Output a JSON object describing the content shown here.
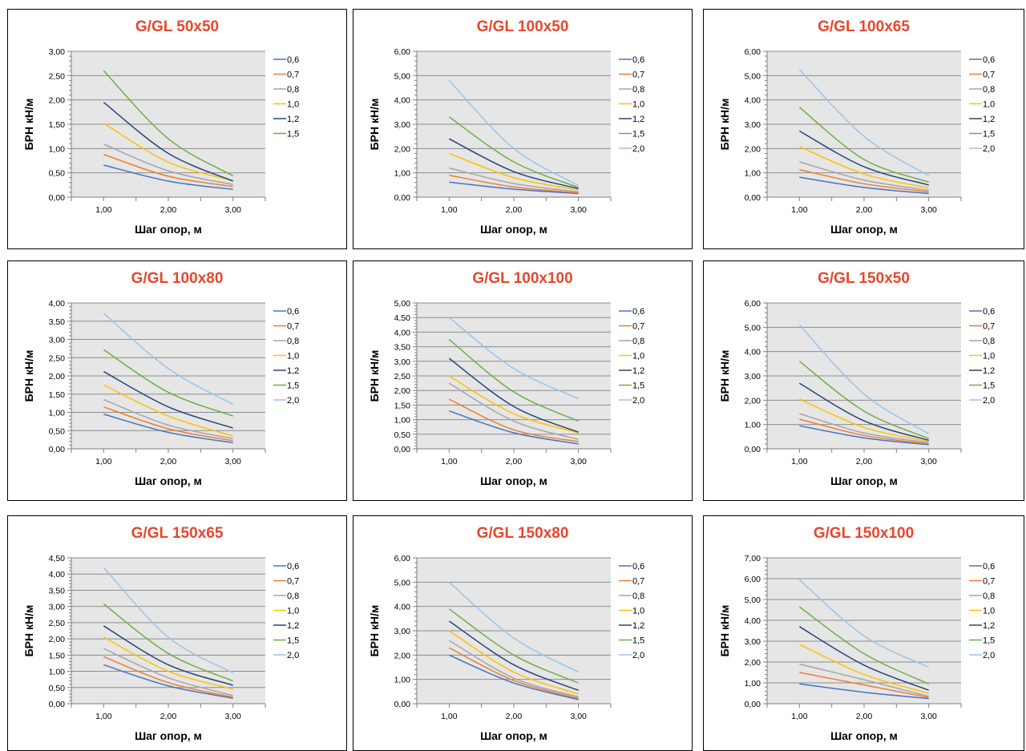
{
  "series_names": [
    "0,6",
    "0,7",
    "0,8",
    "1,0",
    "1,2",
    "1,5",
    "2,0"
  ],
  "series_colors": [
    "#4472c4",
    "#ed7d31",
    "#a5a5a5",
    "#ffc000",
    "#264478",
    "#70ad47",
    "#9dc3e6"
  ],
  "chart_data": [
    {
      "type": "line",
      "title": "G/GL 50x50",
      "xlabel": "Шаг опор, м",
      "ylabel": "БРН кН/м",
      "x": [
        1,
        2,
        3
      ],
      "x_ticks": [
        "1,00",
        "2,00",
        "3,00"
      ],
      "xlim": [
        0.5,
        3.5
      ],
      "ylim": [
        0,
        3.0
      ],
      "y_ticks": [
        "0,00",
        "0,50",
        "1,00",
        "1,50",
        "2,00",
        "2,50",
        "3,00"
      ],
      "minor_ticks": 5,
      "legend": "right",
      "grid": true,
      "series": [
        {
          "name": "0,6",
          "values": [
            0.66,
            0.33,
            0.16
          ]
        },
        {
          "name": "0,7",
          "values": [
            0.88,
            0.43,
            0.22
          ]
        },
        {
          "name": "0,8",
          "values": [
            1.09,
            0.54,
            0.26
          ]
        },
        {
          "name": "1,0",
          "values": [
            1.52,
            0.72,
            0.34
          ]
        },
        {
          "name": "1,2",
          "values": [
            1.95,
            0.9,
            0.33
          ]
        },
        {
          "name": "1,5",
          "values": [
            2.6,
            1.2,
            0.44
          ]
        }
      ]
    },
    {
      "type": "line",
      "title": "G/GL 100x50",
      "xlabel": "Шаг опор, м",
      "ylabel": "БРН кН/м",
      "x": [
        1,
        2,
        3
      ],
      "x_ticks": [
        "1,00",
        "2,00",
        "3,00"
      ],
      "xlim": [
        0.5,
        3.5
      ],
      "ylim": [
        0,
        6.0
      ],
      "y_ticks": [
        "0,00",
        "1,00",
        "2,00",
        "3,00",
        "4,00",
        "5,00",
        "6,00"
      ],
      "minor_ticks": 5,
      "legend": "right",
      "grid": true,
      "series": [
        {
          "name": "0,6",
          "values": [
            0.62,
            0.33,
            0.15
          ]
        },
        {
          "name": "0,7",
          "values": [
            0.9,
            0.42,
            0.18
          ]
        },
        {
          "name": "0,8",
          "values": [
            1.2,
            0.56,
            0.22
          ]
        },
        {
          "name": "1,0",
          "values": [
            1.8,
            0.8,
            0.3
          ]
        },
        {
          "name": "1,2",
          "values": [
            2.4,
            1.05,
            0.35
          ]
        },
        {
          "name": "1,5",
          "values": [
            3.3,
            1.45,
            0.4
          ]
        },
        {
          "name": "2,0",
          "values": [
            4.8,
            2.0,
            0.48
          ]
        }
      ]
    },
    {
      "type": "line",
      "title": "G/GL 100x65",
      "xlabel": "Шаг опор, м",
      "ylabel": "БРН кН/м",
      "x": [
        1,
        2,
        3
      ],
      "x_ticks": [
        "1,00",
        "2,00",
        "3,00"
      ],
      "xlim": [
        0.5,
        3.5
      ],
      "ylim": [
        0,
        6.0
      ],
      "y_ticks": [
        "0,00",
        "1,00",
        "2,00",
        "3,00",
        "4,00",
        "5,00",
        "6,00"
      ],
      "minor_ticks": 5,
      "legend": "right",
      "grid": true,
      "series": [
        {
          "name": "0,6",
          "values": [
            0.82,
            0.4,
            0.15
          ]
        },
        {
          "name": "0,7",
          "values": [
            1.13,
            0.55,
            0.22
          ]
        },
        {
          "name": "0,8",
          "values": [
            1.45,
            0.7,
            0.28
          ]
        },
        {
          "name": "1,0",
          "values": [
            2.08,
            0.95,
            0.38
          ]
        },
        {
          "name": "1,2",
          "values": [
            2.72,
            1.25,
            0.5
          ]
        },
        {
          "name": "1,5",
          "values": [
            3.7,
            1.55,
            0.62
          ]
        },
        {
          "name": "2,0",
          "values": [
            5.25,
            2.5,
            0.88
          ]
        }
      ]
    },
    {
      "type": "line",
      "title": "G/GL 100x80",
      "xlabel": "Шаг опор, м",
      "ylabel": "БРН кН/м",
      "x": [
        1,
        2,
        3
      ],
      "x_ticks": [
        "1,00",
        "2,00",
        "3,00"
      ],
      "xlim": [
        0.5,
        3.5
      ],
      "ylim": [
        0,
        4.0
      ],
      "y_ticks": [
        "0,00",
        "0,50",
        "1,00",
        "1,50",
        "2,00",
        "2,50",
        "3,00",
        "3,50",
        "4,00"
      ],
      "minor_ticks": 5,
      "legend": "right",
      "grid": true,
      "series": [
        {
          "name": "0,6",
          "values": [
            0.95,
            0.45,
            0.17
          ]
        },
        {
          "name": "0,7",
          "values": [
            1.15,
            0.55,
            0.22
          ]
        },
        {
          "name": "0,8",
          "values": [
            1.35,
            0.65,
            0.28
          ]
        },
        {
          "name": "1,0",
          "values": [
            1.75,
            0.9,
            0.35
          ]
        },
        {
          "name": "1,2",
          "values": [
            2.12,
            1.15,
            0.57
          ]
        },
        {
          "name": "1,5",
          "values": [
            2.72,
            1.55,
            0.9
          ]
        },
        {
          "name": "2,0",
          "values": [
            3.72,
            2.2,
            1.22
          ]
        }
      ]
    },
    {
      "type": "line",
      "title": "G/GL 100x100",
      "xlabel": "Шаг опор, м",
      "ylabel": "БРН кН/м",
      "x": [
        1,
        2,
        3
      ],
      "x_ticks": [
        "1,00",
        "2,00",
        "3,00"
      ],
      "xlim": [
        0.5,
        3.5
      ],
      "ylim": [
        0,
        5.0
      ],
      "y_ticks": [
        "0,00",
        "0,50",
        "1,00",
        "1,50",
        "2,00",
        "2,50",
        "3,00",
        "3,50",
        "4,00",
        "4,50",
        "5,00"
      ],
      "minor_ticks": 5,
      "legend": "right",
      "grid": true,
      "series": [
        {
          "name": "0,6",
          "values": [
            1.3,
            0.55,
            0.17
          ]
        },
        {
          "name": "0,7",
          "values": [
            1.7,
            0.65,
            0.25
          ]
        },
        {
          "name": "0,8",
          "values": [
            2.25,
            0.95,
            0.32
          ]
        },
        {
          "name": "1,0",
          "values": [
            2.5,
            1.2,
            0.55
          ]
        },
        {
          "name": "1,2",
          "values": [
            3.1,
            1.45,
            0.57
          ]
        },
        {
          "name": "1,5",
          "values": [
            3.75,
            1.95,
            0.95
          ]
        },
        {
          "name": "2,0",
          "values": [
            4.5,
            2.75,
            1.72
          ]
        }
      ]
    },
    {
      "type": "line",
      "title": "G/GL 150x50",
      "xlabel": "Шаг опор, м",
      "ylabel": "БРН кН/м",
      "x": [
        1,
        2,
        3
      ],
      "x_ticks": [
        "1,00",
        "2,00",
        "3,00"
      ],
      "xlim": [
        0.5,
        3.5
      ],
      "ylim": [
        0,
        6.0
      ],
      "y_ticks": [
        "0,00",
        "1,00",
        "2,00",
        "3,00",
        "4,00",
        "5,00",
        "6,00"
      ],
      "minor_ticks": 5,
      "legend": "right",
      "grid": true,
      "series": [
        {
          "name": "0,6",
          "values": [
            0.95,
            0.45,
            0.17
          ]
        },
        {
          "name": "0,7",
          "values": [
            1.22,
            0.55,
            0.2
          ]
        },
        {
          "name": "0,8",
          "values": [
            1.45,
            0.65,
            0.25
          ]
        },
        {
          "name": "1,0",
          "values": [
            2.05,
            0.88,
            0.3
          ]
        },
        {
          "name": "1,2",
          "values": [
            2.7,
            1.15,
            0.35
          ]
        },
        {
          "name": "1,5",
          "values": [
            3.6,
            1.55,
            0.42
          ]
        },
        {
          "name": "2,0",
          "values": [
            5.1,
            2.25,
            0.62
          ]
        }
      ]
    },
    {
      "type": "line",
      "title": "G/GL 150x65",
      "xlabel": "Шаг опор, м",
      "ylabel": "БРН кН/м",
      "x": [
        1,
        2,
        3
      ],
      "x_ticks": [
        "1,00",
        "2,00",
        "3,00"
      ],
      "xlim": [
        0.5,
        3.5
      ],
      "ylim": [
        0,
        4.5
      ],
      "y_ticks": [
        "0,00",
        "0,50",
        "1,00",
        "1,50",
        "2,00",
        "2,50",
        "3,00",
        "3,50",
        "4,00",
        "4,50"
      ],
      "minor_ticks": 5,
      "legend": "right",
      "grid": true,
      "series": [
        {
          "name": "0,6",
          "values": [
            1.2,
            0.55,
            0.17
          ]
        },
        {
          "name": "0,7",
          "values": [
            1.45,
            0.65,
            0.2
          ]
        },
        {
          "name": "0,8",
          "values": [
            1.7,
            0.8,
            0.25
          ]
        },
        {
          "name": "1,0",
          "values": [
            2.05,
            1.0,
            0.45
          ]
        },
        {
          "name": "1,2",
          "values": [
            2.4,
            1.2,
            0.57
          ]
        },
        {
          "name": "1,5",
          "values": [
            3.08,
            1.55,
            0.7
          ]
        },
        {
          "name": "2,0",
          "values": [
            4.2,
            2.05,
            0.95
          ]
        }
      ]
    },
    {
      "type": "line",
      "title": "G/GL 150x80",
      "xlabel": "Шаг опор, м",
      "ylabel": "БРН кН/м",
      "x": [
        1,
        2,
        3
      ],
      "x_ticks": [
        "1,00",
        "2,00",
        "3,00"
      ],
      "xlim": [
        0.5,
        3.5
      ],
      "ylim": [
        0,
        6.0
      ],
      "y_ticks": [
        "0,00",
        "1,00",
        "2,00",
        "3,00",
        "4,00",
        "5,00",
        "6,00"
      ],
      "minor_ticks": 5,
      "legend": "right",
      "grid": true,
      "series": [
        {
          "name": "0,6",
          "values": [
            2.0,
            0.85,
            0.17
          ]
        },
        {
          "name": "0,7",
          "values": [
            2.3,
            0.95,
            0.22
          ]
        },
        {
          "name": "0,8",
          "values": [
            2.6,
            1.05,
            0.28
          ]
        },
        {
          "name": "1,0",
          "values": [
            3.0,
            1.3,
            0.4
          ]
        },
        {
          "name": "1,2",
          "values": [
            3.4,
            1.6,
            0.55
          ]
        },
        {
          "name": "1,5",
          "values": [
            3.9,
            2.0,
            0.85
          ]
        },
        {
          "name": "2,0",
          "values": [
            5.0,
            2.7,
            1.3
          ]
        }
      ]
    },
    {
      "type": "line",
      "title": "G/GL 150x100",
      "xlabel": "Шаг опор, м",
      "ylabel": "БРН кН/м",
      "x": [
        1,
        2,
        3
      ],
      "x_ticks": [
        "1,00",
        "2,00",
        "3,00"
      ],
      "xlim": [
        0.5,
        3.5
      ],
      "ylim": [
        0,
        7.0
      ],
      "y_ticks": [
        "0,00",
        "1,00",
        "2,00",
        "3,00",
        "4,00",
        "5,00",
        "6,00",
        "7,00"
      ],
      "minor_ticks": 5,
      "legend": "right",
      "grid": true,
      "series": [
        {
          "name": "0,6",
          "values": [
            0.95,
            0.55,
            0.25
          ]
        },
        {
          "name": "0,7",
          "values": [
            1.5,
            0.9,
            0.3
          ]
        },
        {
          "name": "0,8",
          "values": [
            1.9,
            1.15,
            0.35
          ]
        },
        {
          "name": "1,0",
          "values": [
            2.85,
            1.4,
            0.5
          ]
        },
        {
          "name": "1,2",
          "values": [
            3.7,
            1.85,
            0.65
          ]
        },
        {
          "name": "1,5",
          "values": [
            4.65,
            2.4,
            0.95
          ]
        },
        {
          "name": "2,0",
          "values": [
            5.95,
            3.25,
            1.75
          ]
        }
      ]
    }
  ]
}
